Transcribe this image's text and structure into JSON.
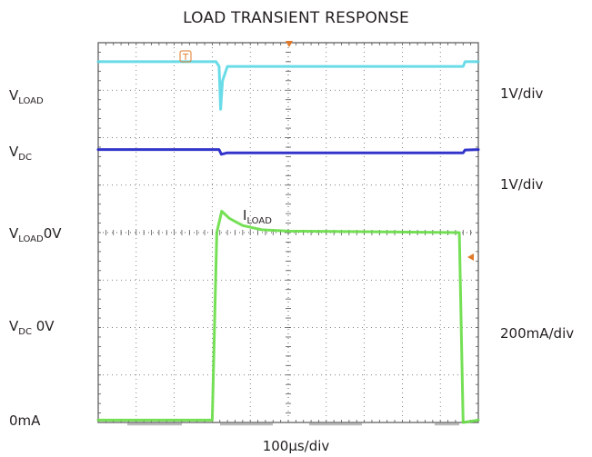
{
  "title": "LOAD TRANSIENT RESPONSE",
  "timebase": "100µs/div",
  "left_labels": {
    "vload": {
      "main": "V",
      "sub": "LOAD",
      "suffix": ""
    },
    "vdc": {
      "main": "V",
      "sub": "DC",
      "suffix": ""
    },
    "vload_zero": {
      "main": "V",
      "sub": "LOAD",
      "suffix": "0V"
    },
    "vdc_zero": {
      "main": "V",
      "sub": "DC",
      "suffix": " 0V"
    },
    "zero_current": "0mA"
  },
  "right_labels": {
    "vload_scale": "1V/div",
    "vdc_scale": "1V/div",
    "iload_scale": "200mA/div"
  },
  "trace_label": {
    "main": "I",
    "sub": "LOAD"
  },
  "trigger_marker": "T",
  "colors": {
    "vload_trace": "#5ad8e6",
    "vdc_trace": "#1d1fc4",
    "iload_trace": "#66dd44",
    "grid": "#555555",
    "markers": "#e07a2a"
  },
  "chart_data": {
    "type": "line",
    "title": "LOAD TRANSIENT RESPONSE",
    "xlabel": "100µs/div",
    "x_unit": "µs",
    "xlim": [
      0,
      1000
    ],
    "grid": true,
    "divisions": {
      "horizontal": 10,
      "vertical": 8
    },
    "series": [
      {
        "name": "VLOAD",
        "color": "#5ad8e6",
        "scale": "1V/div",
        "points_div": [
          [
            0,
            7.6
          ],
          [
            310,
            7.6
          ],
          [
            318,
            7.5
          ],
          [
            322,
            6.6
          ],
          [
            327,
            7.2
          ],
          [
            340,
            7.5
          ],
          [
            600,
            7.5
          ],
          [
            960,
            7.5
          ],
          [
            965,
            7.6
          ],
          [
            1000,
            7.6
          ]
        ]
      },
      {
        "name": "VDC",
        "color": "#1d1fc4",
        "scale": "1V/div",
        "points_div": [
          [
            0,
            5.75
          ],
          [
            318,
            5.75
          ],
          [
            324,
            5.65
          ],
          [
            340,
            5.68
          ],
          [
            600,
            5.68
          ],
          [
            960,
            5.68
          ],
          [
            965,
            5.74
          ],
          [
            1000,
            5.75
          ]
        ]
      },
      {
        "name": "ILOAD",
        "color": "#66dd44",
        "scale": "200mA/div",
        "points_div": [
          [
            0,
            0.05
          ],
          [
            300,
            0.05
          ],
          [
            312,
            4.0
          ],
          [
            325,
            4.45
          ],
          [
            345,
            4.3
          ],
          [
            380,
            4.15
          ],
          [
            430,
            4.06
          ],
          [
            500,
            4.03
          ],
          [
            700,
            4.02
          ],
          [
            950,
            4.0
          ],
          [
            960,
            0.0
          ],
          [
            1000,
            0.05
          ]
        ]
      }
    ]
  }
}
